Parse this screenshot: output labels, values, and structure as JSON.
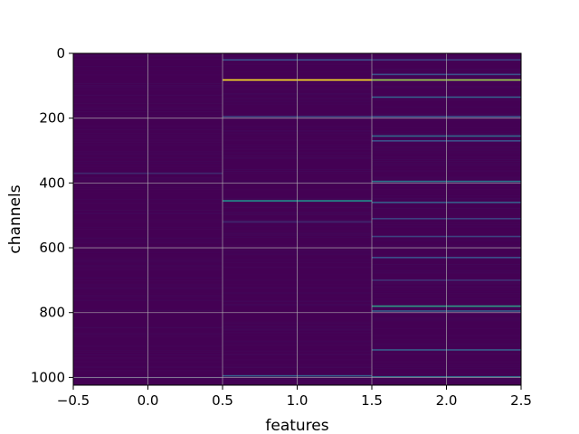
{
  "chart_data": {
    "type": "heatmap",
    "title": "",
    "xlabel": "features",
    "ylabel": "channels",
    "xlim": [
      -0.5,
      2.5
    ],
    "ylim": [
      1024,
      0
    ],
    "y_inverted": true,
    "grid": true,
    "colormap": "viridis",
    "background_color": "#440154",
    "x_ticks": [
      -0.5,
      0.0,
      0.5,
      1.0,
      1.5,
      2.0,
      2.5
    ],
    "x_tick_labels": [
      "−0.5",
      "0.0",
      "0.5",
      "1.0",
      "1.5",
      "2.0",
      "2.5"
    ],
    "y_ticks": [
      0,
      200,
      400,
      600,
      800,
      1000
    ],
    "y_tick_labels": [
      "0",
      "200",
      "400",
      "600",
      "800",
      "1000"
    ],
    "columns": [
      {
        "feature": 0,
        "highlights": [
          {
            "channel": 370,
            "value": 0.12
          },
          {
            "channel": 1000,
            "value": 0.08
          }
        ]
      },
      {
        "feature": 1,
        "highlights": [
          {
            "channel": 20,
            "value": 0.25
          },
          {
            "channel": 82,
            "value": 1.0
          },
          {
            "channel": 195,
            "value": 0.2
          },
          {
            "channel": 455,
            "value": 0.5
          },
          {
            "channel": 520,
            "value": 0.12
          },
          {
            "channel": 995,
            "value": 0.3
          }
        ]
      },
      {
        "feature": 2,
        "highlights": [
          {
            "channel": 20,
            "value": 0.2
          },
          {
            "channel": 65,
            "value": 0.25
          },
          {
            "channel": 82,
            "value": 0.85
          },
          {
            "channel": 135,
            "value": 0.3
          },
          {
            "channel": 195,
            "value": 0.25
          },
          {
            "channel": 255,
            "value": 0.35
          },
          {
            "channel": 270,
            "value": 0.25
          },
          {
            "channel": 395,
            "value": 0.4
          },
          {
            "channel": 460,
            "value": 0.3
          },
          {
            "channel": 510,
            "value": 0.2
          },
          {
            "channel": 565,
            "value": 0.2
          },
          {
            "channel": 630,
            "value": 0.25
          },
          {
            "channel": 700,
            "value": 0.15
          },
          {
            "channel": 780,
            "value": 0.55
          },
          {
            "channel": 795,
            "value": 0.3
          },
          {
            "channel": 915,
            "value": 0.3
          },
          {
            "channel": 998,
            "value": 0.35
          }
        ]
      }
    ]
  }
}
